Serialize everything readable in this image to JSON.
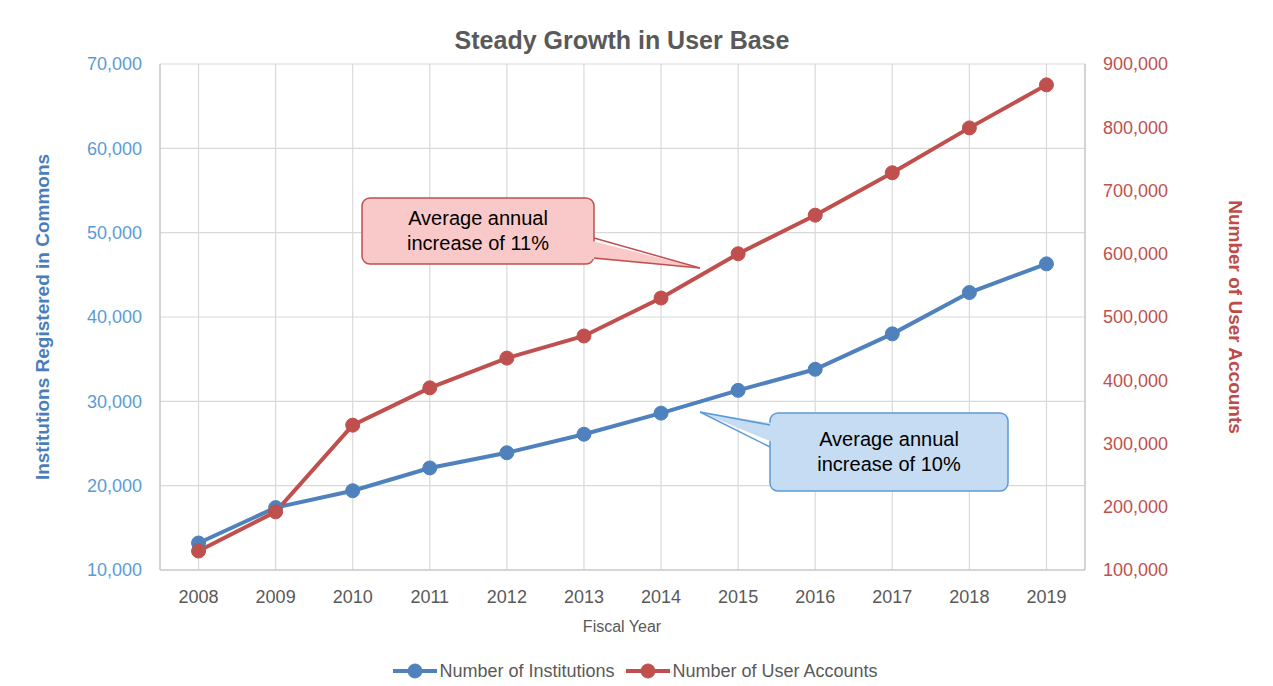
{
  "chart_data": {
    "type": "line",
    "title": "Steady Growth in User Base",
    "x_label": "Fiscal Year",
    "y_label": "Institutions Registered in Commons",
    "y2_label": "Number of User Accounts",
    "categories": [
      "2008",
      "2009",
      "2010",
      "2011",
      "2012",
      "2013",
      "2014",
      "2015",
      "2016",
      "2017",
      "2018",
      "2019"
    ],
    "series": [
      {
        "name": "Number of Institutions",
        "color": "#4f81bd",
        "marker": "circle",
        "line_style": "solid",
        "values": [
          13200,
          17400,
          19400,
          22100,
          23900,
          26100,
          28600,
          31300,
          33800,
          38000,
          42900,
          46300
        ]
      },
      {
        "name": "Number of User Accounts",
        "color": "#c0504d",
        "marker": "circle",
        "line_style": "solid",
        "axis": "y2",
        "values": [
          130000,
          192000,
          329000,
          388000,
          435000,
          470000,
          530000,
          600000,
          661000,
          728000,
          799000,
          867000
        ]
      }
    ],
    "ylim": [
      10000,
      70000
    ],
    "yticks": [
      {
        "value": 10000,
        "label": "10,000"
      },
      {
        "value": 20000,
        "label": "20,000"
      },
      {
        "value": 30000,
        "label": "30,000"
      },
      {
        "value": 40000,
        "label": "40,000"
      },
      {
        "value": 50000,
        "label": "50,000"
      },
      {
        "value": 60000,
        "label": "60,000"
      },
      {
        "value": 70000,
        "label": "70,000"
      }
    ],
    "y2lim": [
      100000,
      900000
    ],
    "y2ticks": [
      {
        "value": 100000,
        "label": "100,000"
      },
      {
        "value": 200000,
        "label": "200,000"
      },
      {
        "value": 300000,
        "label": "300,000"
      },
      {
        "value": 400000,
        "label": "400,000"
      },
      {
        "value": 500000,
        "label": "500,000"
      },
      {
        "value": 600000,
        "label": "600,000"
      },
      {
        "value": 700000,
        "label": "700,000"
      },
      {
        "value": 800000,
        "label": "800,000"
      },
      {
        "value": 900000,
        "label": "900,000"
      }
    ],
    "grid": true,
    "legend": "bottom",
    "annotations": [
      {
        "text": "Average annual increase of 11%"
      },
      {
        "text": "Average annual increase of 10%"
      }
    ]
  }
}
